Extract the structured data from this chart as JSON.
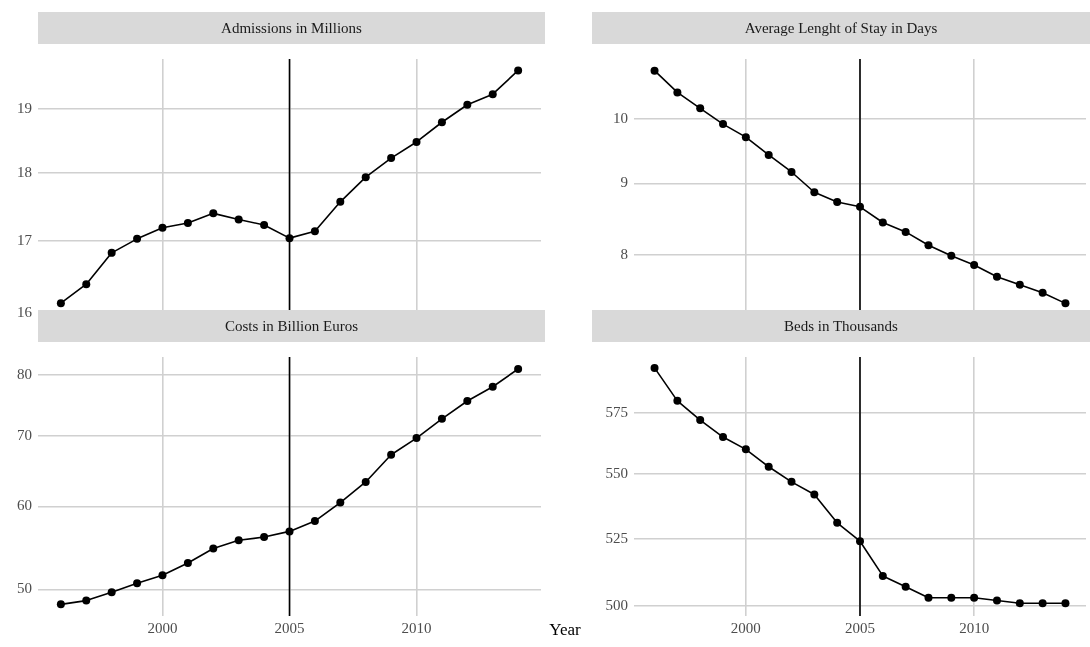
{
  "chart_data": [
    {
      "type": "line",
      "title": "Admissions in Millions",
      "x": [
        1996,
        1997,
        1998,
        1999,
        2000,
        2001,
        2002,
        2003,
        2004,
        2005,
        2006,
        2007,
        2008,
        2009,
        2010,
        2011,
        2012,
        2013,
        2014
      ],
      "series": [
        {
          "color": "#000000",
          "values": [
            16.13,
            16.39,
            16.83,
            17.03,
            17.19,
            17.26,
            17.4,
            17.31,
            17.23,
            17.04,
            17.14,
            17.57,
            17.94,
            18.23,
            18.48,
            18.79,
            19.07,
            19.24,
            19.63
          ]
        }
      ],
      "log": "y",
      "xlim": [
        1995.1,
        2014.9
      ],
      "xticks": [
        2000,
        2005,
        2010
      ],
      "ylim": [
        15.97,
        19.82
      ],
      "yticks": [
        16,
        17,
        18,
        19
      ],
      "grid": true,
      "legend": false,
      "marker": "circle",
      "line_style": "solid",
      "tick_labels": "y",
      "ref_lines": [
        {
          "axis": "x",
          "value": 2005,
          "color": "#000000"
        }
      ]
    },
    {
      "type": "line",
      "title": "Average Lenght of Stay in Days",
      "x": [
        1996,
        1997,
        1998,
        1999,
        2000,
        2001,
        2002,
        2003,
        2004,
        2005,
        2006,
        2007,
        2008,
        2009,
        2010,
        2011,
        2012,
        2013,
        2014
      ],
      "series": [
        {
          "color": "#000000",
          "values": [
            10.83,
            10.45,
            10.18,
            9.92,
            9.71,
            9.43,
            9.17,
            8.87,
            8.73,
            8.66,
            8.44,
            8.31,
            8.13,
            7.99,
            7.87,
            7.72,
            7.62,
            7.52,
            7.39
          ]
        }
      ],
      "log": "y",
      "xlim": [
        1995.1,
        2014.9
      ],
      "xticks": [
        2000,
        2005,
        2010
      ],
      "ylim": [
        7.25,
        11.04
      ],
      "yticks": [
        8,
        9,
        10
      ],
      "grid": true,
      "legend": false,
      "marker": "circle",
      "line_style": "solid",
      "tick_labels": "y",
      "ref_lines": [
        {
          "axis": "x",
          "value": 2005,
          "color": "#000000"
        }
      ]
    },
    {
      "type": "line",
      "title": "Costs in Billion Euros",
      "x": [
        1996,
        1997,
        1998,
        1999,
        2000,
        2001,
        2002,
        2003,
        2004,
        2005,
        2006,
        2007,
        2008,
        2009,
        2010,
        2011,
        2012,
        2013,
        2014
      ],
      "series": [
        {
          "color": "#000000",
          "values": [
            48.4,
            48.8,
            49.7,
            50.7,
            51.6,
            53.0,
            54.7,
            55.7,
            56.1,
            56.8,
            58.1,
            60.5,
            63.3,
            67.2,
            69.7,
            72.7,
            75.6,
            78.0,
            81.1
          ]
        }
      ],
      "log": "y",
      "xlim": [
        1995.1,
        2014.9
      ],
      "xticks": [
        2000,
        2005,
        2010
      ],
      "ylim": [
        47.18,
        83.26
      ],
      "yticks": [
        50,
        60,
        70,
        80
      ],
      "grid": true,
      "legend": false,
      "marker": "circle",
      "line_style": "solid",
      "ref_lines": [
        {
          "axis": "x",
          "value": 2005,
          "color": "#000000"
        }
      ]
    },
    {
      "type": "line",
      "title": "Beds in Thousands",
      "xlabel": "Year",
      "x": [
        1996,
        1997,
        1998,
        1999,
        2000,
        2001,
        2002,
        2003,
        2004,
        2005,
        2006,
        2007,
        2008,
        2009,
        2010,
        2011,
        2012,
        2013,
        2014
      ],
      "series": [
        {
          "color": "#000000",
          "values": [
            594,
            580,
            572,
            565,
            560,
            553,
            547,
            542,
            531,
            524,
            511,
            507,
            503,
            503,
            503,
            502,
            501,
            501,
            501
          ]
        }
      ],
      "log": "y",
      "xlim": [
        1995.1,
        2014.9
      ],
      "xticks": [
        2000,
        2005,
        2010
      ],
      "ylim": [
        496.4,
        598.7
      ],
      "yticks": [
        500,
        525,
        550,
        575
      ],
      "grid": true,
      "legend": false,
      "marker": "circle",
      "line_style": "solid",
      "ref_lines": [
        {
          "axis": "x",
          "value": 2005,
          "color": "#000000"
        }
      ]
    }
  ]
}
